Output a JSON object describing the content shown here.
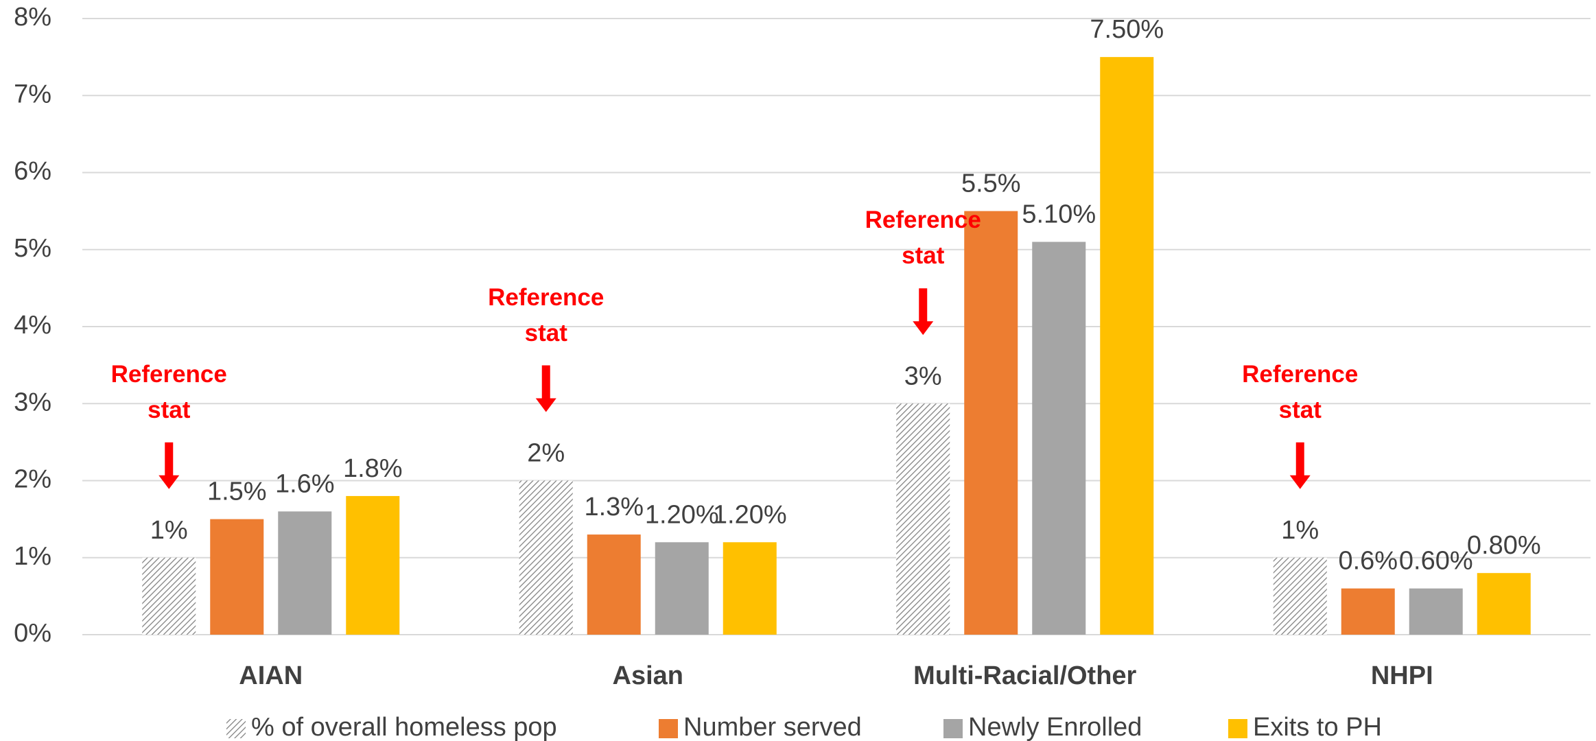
{
  "chart_data": {
    "type": "bar",
    "categories": [
      "AIAN",
      "Asian",
      "Multi-Racial/Other",
      "NHPI"
    ],
    "series": [
      {
        "name": "% of overall homeless pop",
        "color": "#7f7f7f",
        "pattern": "hatch",
        "values": [
          1,
          2,
          3,
          1
        ],
        "value_labels": [
          "1%",
          "2%",
          "3%",
          "1%"
        ]
      },
      {
        "name": "Number served",
        "color": "#ED7D31",
        "values": [
          1.5,
          1.3,
          5.5,
          0.6
        ],
        "value_labels": [
          "1.5%",
          "1.3%",
          "5.5%",
          "0.6%"
        ]
      },
      {
        "name": "Newly Enrolled",
        "color": "#A5A5A5",
        "values": [
          1.6,
          1.2,
          5.1,
          0.6
        ],
        "value_labels": [
          "1.6%",
          "1.20%",
          "5.10%",
          "0.60%"
        ]
      },
      {
        "name": "Exits to PH",
        "color": "#FFC000",
        "values": [
          1.8,
          1.2,
          7.5,
          0.8
        ],
        "value_labels": [
          "1.8%",
          "1.20%",
          "7.50%",
          "0.80%"
        ]
      }
    ],
    "ylim": [
      0,
      8
    ],
    "yticks": [
      {
        "value": 0,
        "label": "0%"
      },
      {
        "value": 1,
        "label": "1%"
      },
      {
        "value": 2,
        "label": "2%"
      },
      {
        "value": 3,
        "label": "3%"
      },
      {
        "value": 4,
        "label": "4%"
      },
      {
        "value": 5,
        "label": "5%"
      },
      {
        "value": 6,
        "label": "6%"
      },
      {
        "value": 7,
        "label": "7%"
      },
      {
        "value": 8,
        "label": "8%"
      }
    ],
    "grid": true,
    "legend": "bottom",
    "annotations": [
      "Reference stat",
      "Reference stat",
      "Reference stat",
      "Reference stat"
    ]
  }
}
